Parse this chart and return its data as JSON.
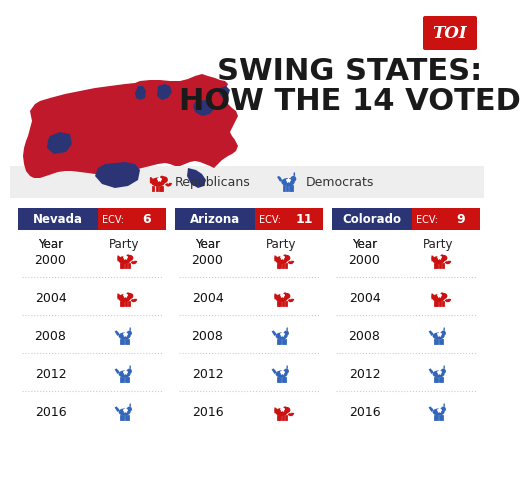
{
  "title_line1": "SWING STATES:",
  "title_line2": "HOW THE 14 VOTED",
  "bg_color": "#ffffff",
  "toi_bg": "#cc1111",
  "toi_text": "TOI",
  "legend_rep_label": "Republicans",
  "legend_dem_label": "Democrats",
  "states": [
    {
      "name": "Nevada",
      "ecv": "6",
      "votes": {
        "2000": "R",
        "2004": "R",
        "2008": "D",
        "2012": "D",
        "2016": "D"
      }
    },
    {
      "name": "Arizona",
      "ecv": "11",
      "votes": {
        "2000": "R",
        "2004": "R",
        "2008": "D",
        "2012": "D",
        "2016": "R"
      }
    },
    {
      "name": "Colorado",
      "ecv": "9",
      "votes": {
        "2000": "R",
        "2004": "R",
        "2008": "D",
        "2012": "D",
        "2016": "D"
      }
    }
  ],
  "years": [
    "2000",
    "2004",
    "2008",
    "2012",
    "2016"
  ],
  "navy_color": "#2b3575",
  "red_color": "#cc1111",
  "rep_color": "#cc1111",
  "dem_color": "#3366bb",
  "legend_bg": "#eeeeee",
  "dotted_line_color": "#cccccc",
  "map_red": "#c0192c",
  "map_navy": "#2b3575"
}
